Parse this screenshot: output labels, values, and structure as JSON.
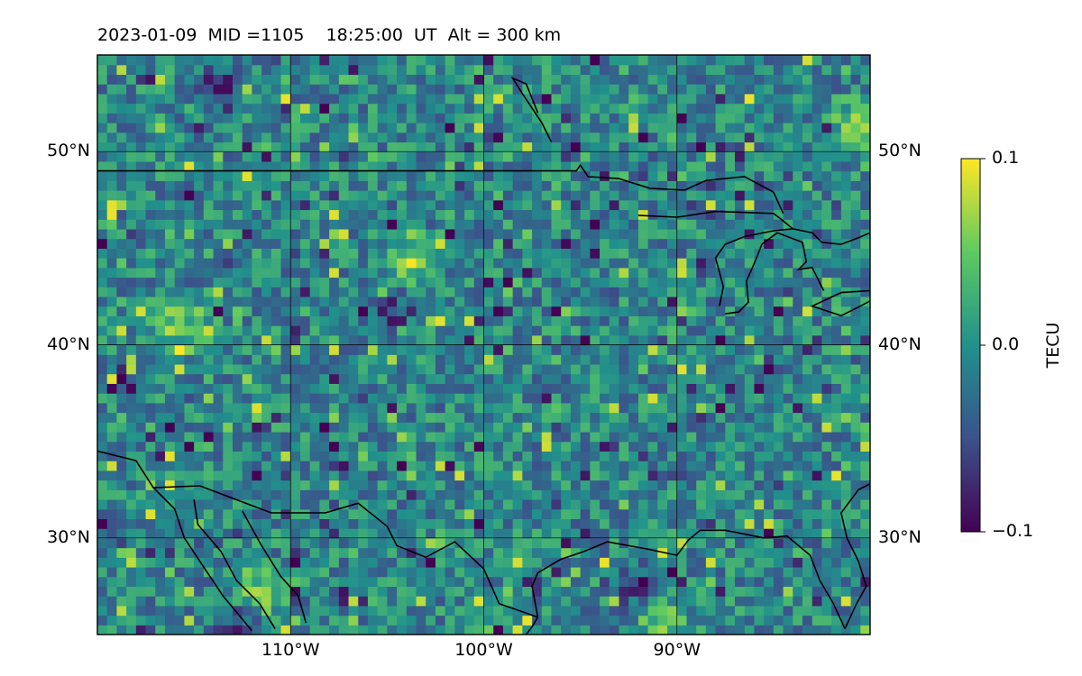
{
  "title": "2023-01-09  MID =1105    18:25:00  UT  Alt = 300 km",
  "chart_data": {
    "type": "heatmap",
    "title": "2023-01-09  MID =1105    18:25:00  UT  Alt = 300 km",
    "map": "North America (central US, Great Lakes, Gulf of Mexico)",
    "x_axis": {
      "label": "",
      "ticks": [
        {
          "value": -110,
          "label": "110°W"
        },
        {
          "value": -100,
          "label": "100°W"
        },
        {
          "value": -90,
          "label": "90°W"
        }
      ],
      "range": [
        -120,
        -80
      ]
    },
    "y_axis": {
      "label": "",
      "ticks": [
        {
          "value": 30,
          "label": "30°N"
        },
        {
          "value": 40,
          "label": "40°N"
        },
        {
          "value": 50,
          "label": "50°N"
        }
      ],
      "range": [
        25,
        55
      ]
    },
    "grid": true,
    "colorbar": {
      "label": "TECU",
      "colormap": "viridis",
      "min": -0.1,
      "max": 0.1,
      "ticks": [
        {
          "value": 0.1,
          "label": "0.1"
        },
        {
          "value": 0.0,
          "label": "0.0"
        },
        {
          "value": -0.1,
          "label": "−0.1"
        }
      ],
      "colors": [
        "#440154",
        "#3b528b",
        "#21918c",
        "#5ec962",
        "#fde725"
      ]
    },
    "features": {
      "noted_high_regions": [
        {
          "lon": -116,
          "lat": 41
        },
        {
          "lon": -104,
          "lat": 44
        },
        {
          "lon": -81,
          "lat": 51
        },
        {
          "lon": -91,
          "lat": 25.5
        },
        {
          "lon": -112,
          "lat": 27
        }
      ],
      "noted_low_regions": [
        {
          "lon": -114,
          "lat": 53
        },
        {
          "lon": -105,
          "lat": 41.5
        },
        {
          "lon": -92,
          "lat": 27
        },
        {
          "lon": -113,
          "lat": 25.5
        }
      ]
    }
  }
}
